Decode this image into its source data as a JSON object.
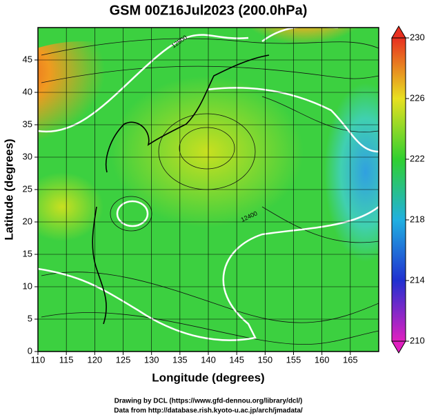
{
  "chart_data": {
    "type": "map",
    "title": "GSM 00Z16Jul2023 (200.0hPa)",
    "x_label": "Longitude (degrees)",
    "y_label": "Latitude  (degrees)",
    "xlim": [
      110,
      170
    ],
    "xticks": [
      110,
      115,
      120,
      125,
      130,
      135,
      140,
      145,
      150,
      155,
      160,
      165
    ],
    "ylim": [
      0,
      50
    ],
    "yticks": [
      0,
      5,
      10,
      15,
      20,
      25,
      30,
      35,
      40,
      45
    ],
    "grid": true,
    "colorbar": {
      "lim": [
        210,
        230
      ],
      "ticks": [
        210,
        214,
        218,
        222,
        226,
        230
      ]
    },
    "contour_labels": [
      "12500",
      "12400"
    ],
    "footer": [
      "Drawing by DCL (https://www.gfd-dennou.org/library/dcl/)",
      "Data from http://database.rish.kyoto-u.ac.jp/arch/jmadata/"
    ]
  }
}
